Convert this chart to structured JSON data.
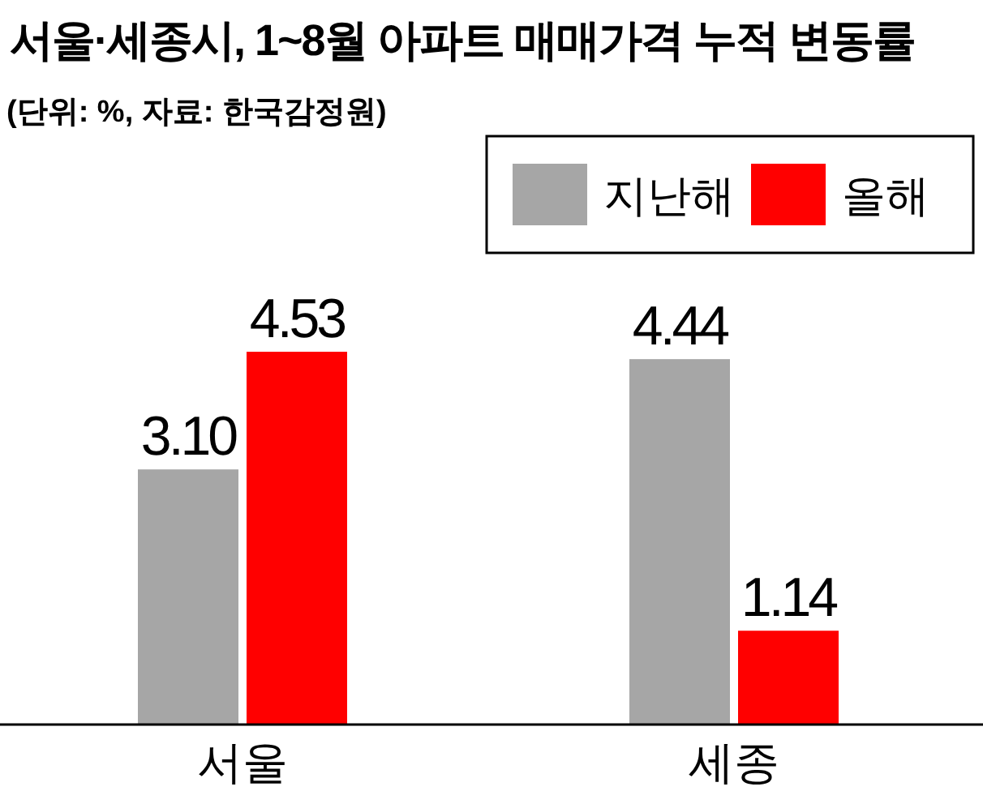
{
  "chart_data": {
    "type": "bar",
    "title": "서울·세종시, 1~8월 아파트 매매가격 누적 변동률",
    "subtitle": "(단위: %, 자료: 한국감정원)",
    "categories": [
      "서울",
      "세종"
    ],
    "series": [
      {
        "name": "지난해",
        "color": "#a6a6a6",
        "values": [
          3.1,
          4.44
        ],
        "value_labels": [
          "3.10",
          "4.44"
        ]
      },
      {
        "name": "올해",
        "color": "#ff0000",
        "values": [
          4.53,
          1.14
        ],
        "value_labels": [
          "4.53",
          "1.14"
        ]
      }
    ],
    "legend": "top right"
  }
}
